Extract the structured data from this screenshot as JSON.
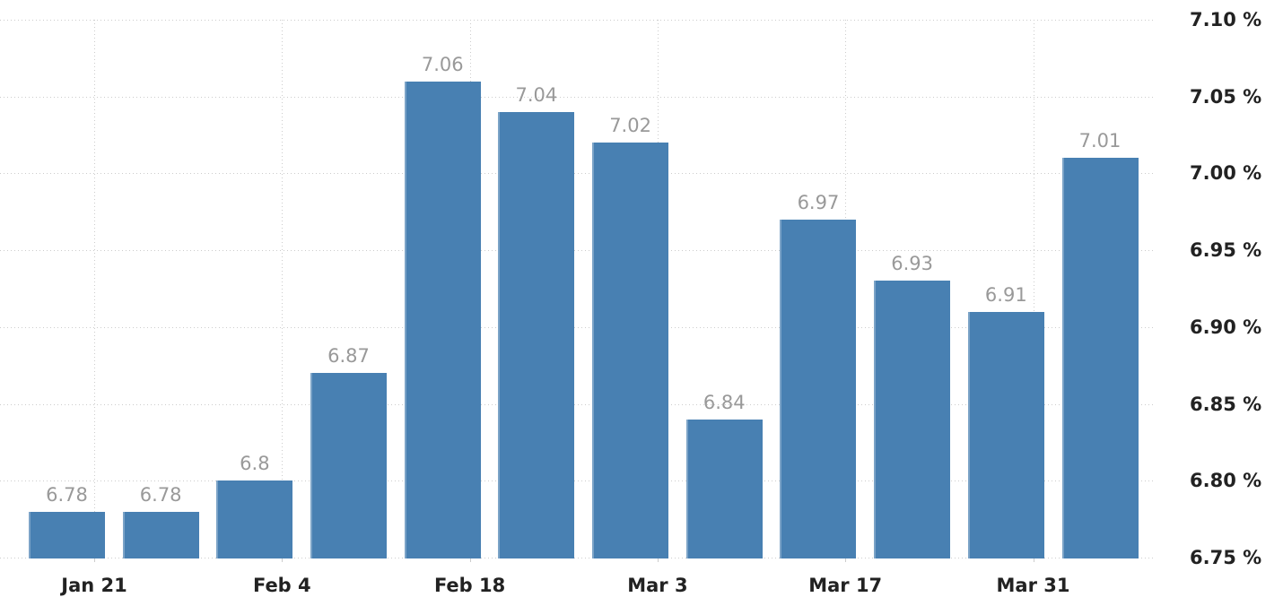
{
  "chart_data": {
    "type": "bar",
    "title": "",
    "xlabel": "",
    "ylabel": "",
    "unit": "%",
    "ylim": [
      6.75,
      7.1
    ],
    "grid": "dotted",
    "legend": "none",
    "y_axis_side": "right",
    "bars": [
      {
        "value": 6.78,
        "label": "6.78"
      },
      {
        "value": 6.78,
        "label": "6.78"
      },
      {
        "value": 6.8,
        "label": "6.8"
      },
      {
        "value": 6.87,
        "label": "6.87"
      },
      {
        "value": 7.06,
        "label": "7.06"
      },
      {
        "value": 7.04,
        "label": "7.04"
      },
      {
        "value": 7.02,
        "label": "7.02"
      },
      {
        "value": 6.84,
        "label": "6.84"
      },
      {
        "value": 6.97,
        "label": "6.97"
      },
      {
        "value": 6.93,
        "label": "6.93"
      },
      {
        "value": 6.91,
        "label": "6.91"
      },
      {
        "value": 7.01,
        "label": "7.01"
      }
    ],
    "x_ticks": [
      "Jan 21",
      "Feb 4",
      "Feb 18",
      "Mar 3",
      "Mar 17",
      "Mar 31"
    ],
    "y_ticks": [
      {
        "value": 7.1,
        "label": "7.10 %"
      },
      {
        "value": 7.05,
        "label": "7.05 %"
      },
      {
        "value": 7.0,
        "label": "7.00 %"
      },
      {
        "value": 6.95,
        "label": "6.95 %"
      },
      {
        "value": 6.9,
        "label": "6.90 %"
      },
      {
        "value": 6.85,
        "label": "6.85 %"
      },
      {
        "value": 6.8,
        "label": "6.80 %"
      },
      {
        "value": 6.75,
        "label": "6.75 %"
      }
    ],
    "colors": {
      "bar": "#4880B2",
      "value_label": "#999999",
      "axis_label": "#222222",
      "grid": "#cccccc",
      "background": "#ffffff"
    }
  }
}
